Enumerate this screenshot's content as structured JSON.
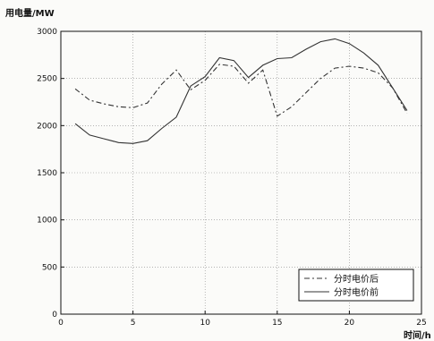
{
  "chart_data": {
    "type": "line",
    "ylabel": "用电量/MW",
    "xlabel": "时间/h",
    "xlim": [
      0,
      25
    ],
    "ylim": [
      0,
      3000
    ],
    "xticks": [
      0,
      5,
      10,
      15,
      20,
      25
    ],
    "yticks": [
      0,
      500,
      1000,
      1500,
      2000,
      2500,
      3000
    ],
    "grid": true,
    "legend_position": "bottom-right",
    "x": [
      1,
      2,
      3,
      4,
      5,
      6,
      7,
      8,
      9,
      10,
      11,
      12,
      13,
      14,
      15,
      16,
      17,
      18,
      19,
      20,
      21,
      22,
      23,
      24
    ],
    "series": [
      {
        "name": "分时电价后",
        "style": "dash-dot",
        "color": "#333333",
        "values": [
          2390,
          2270,
          2230,
          2200,
          2190,
          2240,
          2440,
          2590,
          2380,
          2480,
          2650,
          2630,
          2450,
          2590,
          2100,
          2200,
          2350,
          2500,
          2610,
          2630,
          2610,
          2560,
          2400,
          2130
        ]
      },
      {
        "name": "分时电价前",
        "style": "solid",
        "color": "#333333",
        "values": [
          2020,
          1900,
          1860,
          1820,
          1810,
          1840,
          1970,
          2090,
          2420,
          2520,
          2720,
          2690,
          2510,
          2640,
          2710,
          2720,
          2810,
          2890,
          2920,
          2870,
          2770,
          2640,
          2400,
          2160
        ]
      }
    ]
  }
}
